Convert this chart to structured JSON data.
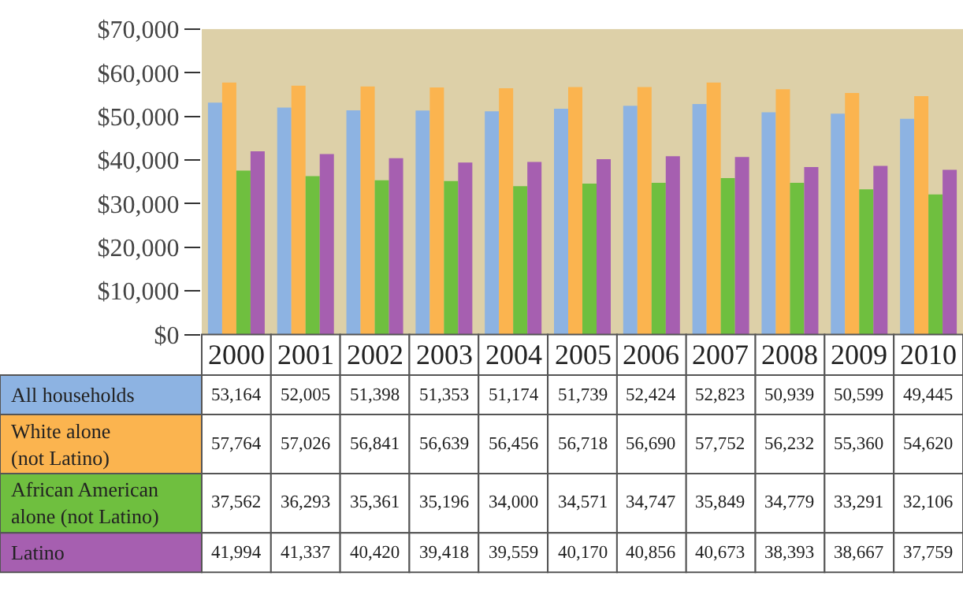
{
  "chart_data": {
    "type": "bar",
    "categories": [
      "2000",
      "2001",
      "2002",
      "2003",
      "2004",
      "2005",
      "2006",
      "2007",
      "2008",
      "2009",
      "2010"
    ],
    "series": [
      {
        "name": "All households",
        "color": "#8db3e2",
        "values": [
          53164,
          52005,
          51398,
          51353,
          51174,
          51739,
          52424,
          52823,
          50939,
          50599,
          49445
        ],
        "value_labels": [
          "53,164",
          "52,005",
          "51,398",
          "51,353",
          "51,174",
          "51,739",
          "52,424",
          "52,823",
          "50,939",
          "50,599",
          "49,445"
        ]
      },
      {
        "name": "White alone (not Latino)",
        "color": "#fbb44f",
        "values": [
          57764,
          57026,
          56841,
          56639,
          56456,
          56718,
          56690,
          57752,
          56232,
          55360,
          54620
        ],
        "value_labels": [
          "57,764",
          "57,026",
          "56,841",
          "56,639",
          "56,456",
          "56,718",
          "56,690",
          "57,752",
          "56,232",
          "55,360",
          "54,620"
        ]
      },
      {
        "name": "African American alone (not Latino)",
        "color": "#6fbf3f",
        "values": [
          37562,
          36293,
          35361,
          35196,
          34000,
          34571,
          34747,
          35849,
          34779,
          33291,
          32106
        ],
        "value_labels": [
          "37,562",
          "36,293",
          "35,361",
          "35,196",
          "34,000",
          "34,571",
          "34,747",
          "35,849",
          "34,779",
          "33,291",
          "32,106"
        ]
      },
      {
        "name": "Latino",
        "color": "#a65fb0",
        "values": [
          41994,
          41337,
          40420,
          39418,
          39559,
          40170,
          40856,
          40673,
          38393,
          38667,
          37759
        ],
        "value_labels": [
          "41,994",
          "41,337",
          "40,420",
          "39,418",
          "39,559",
          "40,170",
          "40,856",
          "40,673",
          "38,393",
          "38,667",
          "37,759"
        ]
      }
    ],
    "ylim": [
      0,
      70000
    ],
    "yticks": [
      {
        "value": 0,
        "label": "$0"
      },
      {
        "value": 10000,
        "label": "$10,000"
      },
      {
        "value": 20000,
        "label": "$20,000"
      },
      {
        "value": 30000,
        "label": "$30,000"
      },
      {
        "value": 40000,
        "label": "$40,000"
      },
      {
        "value": 50000,
        "label": "$50,000"
      },
      {
        "value": 60000,
        "label": "$60,000"
      },
      {
        "value": 70000,
        "label": "$70,000"
      }
    ],
    "grid": false,
    "legend": false
  }
}
